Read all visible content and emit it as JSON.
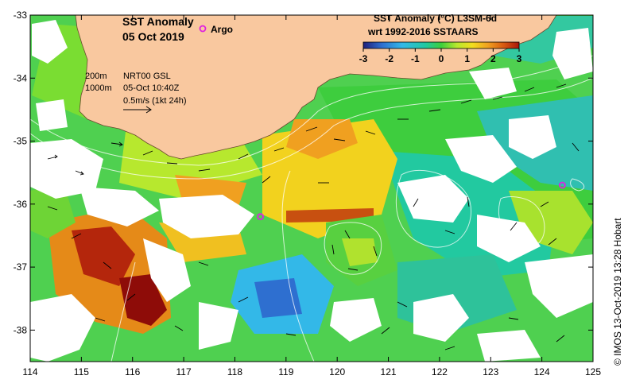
{
  "map": {
    "title_line1": "SST Anomaly",
    "title_line2": "05 Oct 2019",
    "argo_label": "Argo",
    "colorbar_title_line1": "SST Anomaly (°C) L3SM-6d",
    "colorbar_title_line2": "wrt 1992-2016 SSTAARS",
    "colorbar_ticks": [
      "-3",
      "-2",
      "-1",
      "0",
      "1",
      "2",
      "3"
    ],
    "info_lines": [
      "200m",
      "1000m",
      "NRT00 GSL",
      "05-Oct 10:40Z",
      "0.5m/s (1kt 24h)"
    ],
    "credit": "© IMOS 13-Oct-2019 13:28 Hobart",
    "lon_ticks": [
      "114",
      "115",
      "116",
      "117",
      "118",
      "119",
      "120",
      "121",
      "122",
      "123",
      "124",
      "125"
    ],
    "lat_ticks": [
      "-33",
      "-34",
      "-35",
      "-36",
      "-37",
      "-38"
    ],
    "argo_floats": [
      {
        "lon": 118.5,
        "lat": -36.2
      },
      {
        "lon": 124.4,
        "lat": -35.7
      }
    ],
    "colors": {
      "land": "#f9c89f",
      "argo": "#e020e0",
      "anomaly_scale": [
        "#20207a",
        "#2e6fd0",
        "#33b8e8",
        "#22c9a0",
        "#3ccf3c",
        "#b7e82e",
        "#f2dd1e",
        "#f0a020",
        "#d85a10",
        "#a8160a",
        "#7a0808"
      ]
    }
  }
}
